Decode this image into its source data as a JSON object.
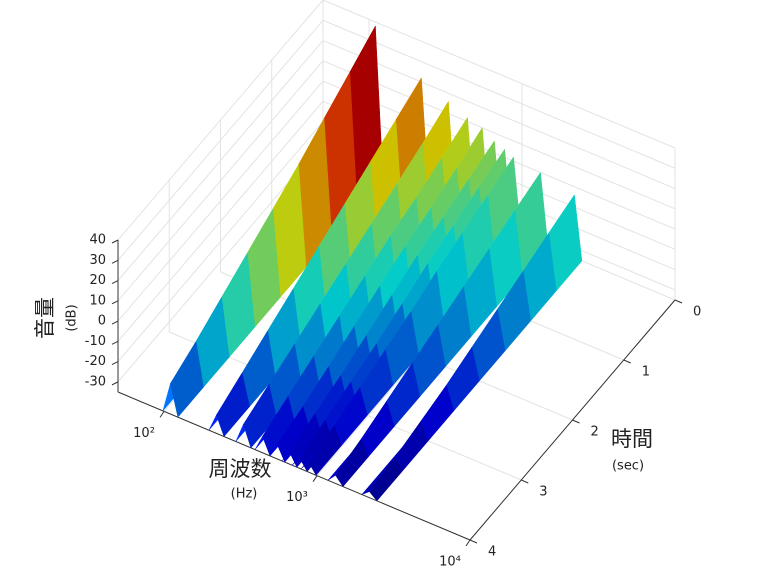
{
  "chart_data": {
    "type": "surface3d",
    "zlabel": "音量",
    "zunit": "(dB)",
    "xlabel": "周波数",
    "xunit": "(Hz)",
    "ylabel": "時間",
    "yunit": "(sec)",
    "xscale": "log",
    "xlim": [
      50,
      10000
    ],
    "xticks": [
      {
        "value": 100,
        "label": "10²"
      },
      {
        "value": 1000,
        "label": "10³"
      },
      {
        "value": 10000,
        "label": "10⁴"
      }
    ],
    "ylim": [
      0,
      4
    ],
    "yticks": [
      0,
      1,
      2,
      3,
      4
    ],
    "zlim": [
      -35,
      40
    ],
    "zticks": [
      -30,
      -20,
      -10,
      0,
      10,
      20,
      30,
      40
    ],
    "grid": true,
    "colormap": "jet",
    "t": [
      0,
      0.5,
      1,
      1.5,
      2,
      2.5,
      3,
      3.5,
      4
    ],
    "series": [
      {
        "frequency": 110,
        "values": [
          38,
          30,
          22,
          14,
          7,
          0,
          -7,
          -14,
          -20
        ]
      },
      {
        "frequency": 220,
        "values": [
          22,
          16,
          10,
          4,
          -2,
          -8,
          -14,
          -20,
          -26
        ]
      },
      {
        "frequency": 330,
        "values": [
          16,
          10,
          5,
          0,
          -5,
          -10,
          -15,
          -20,
          -25
        ]
      },
      {
        "frequency": 440,
        "values": [
          12,
          7,
          2,
          -2,
          -7,
          -12,
          -17,
          -22,
          -27
        ]
      },
      {
        "frequency": 550,
        "values": [
          10,
          5,
          0,
          -4,
          -9,
          -14,
          -19,
          -24,
          -28
        ]
      },
      {
        "frequency": 660,
        "values": [
          6,
          2,
          -2,
          -6,
          -11,
          -16,
          -21,
          -25,
          -29
        ]
      },
      {
        "frequency": 770,
        "values": [
          4,
          0,
          -4,
          -8,
          -13,
          -18,
          -22,
          -26,
          -30
        ]
      },
      {
        "frequency": 880,
        "values": [
          2,
          -2,
          -6,
          -10,
          -15,
          -19,
          -23,
          -27,
          -30
        ]
      },
      {
        "frequency": 1320,
        "values": [
          0,
          -4,
          -8,
          -12,
          -16,
          -20,
          -24,
          -28,
          -31
        ]
      },
      {
        "frequency": 2200,
        "values": [
          -4,
          -8,
          -12,
          -16,
          -20,
          -24,
          -27,
          -30,
          -32
        ]
      }
    ]
  }
}
